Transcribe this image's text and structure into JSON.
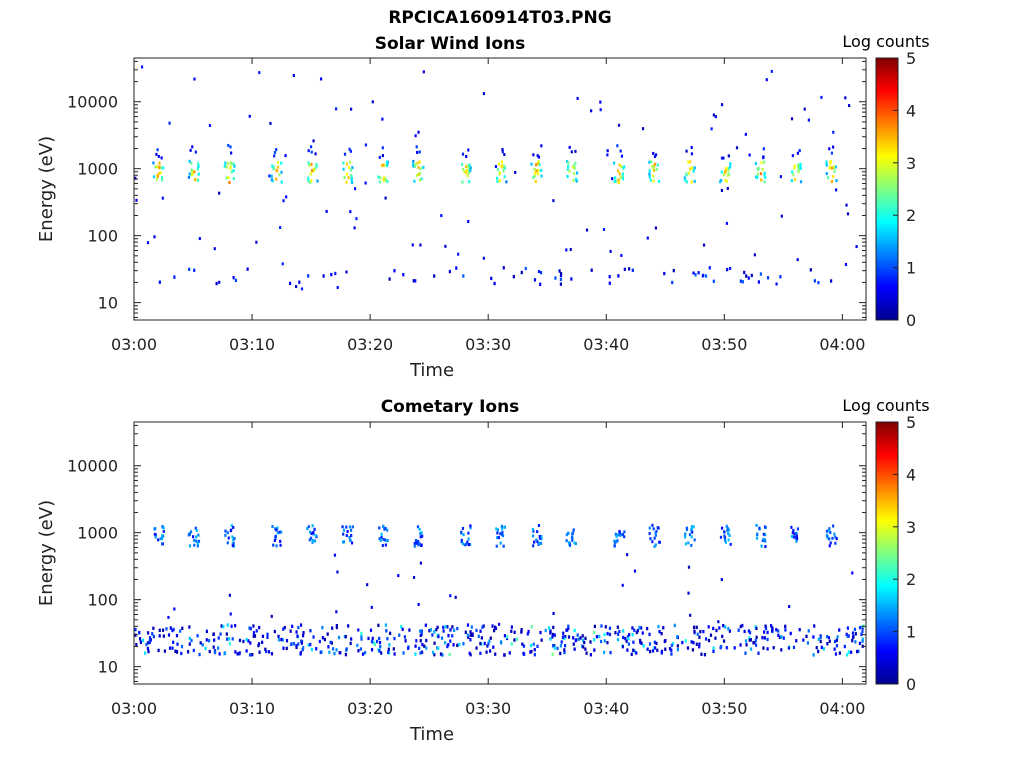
{
  "figure_title": "RPCICA160914T03.PNG",
  "chart_data": [
    {
      "type": "heatmap",
      "title": "Solar Wind Ions",
      "xlabel": "Time",
      "ylabel": "Energy (eV)",
      "x_ticks": [
        "03:00",
        "03:10",
        "03:20",
        "03:30",
        "03:40",
        "03:50",
        "04:00"
      ],
      "xlim": [
        "03:00",
        "04:02"
      ],
      "y_scale": "log",
      "y_ticks": [
        "10",
        "100",
        "1000",
        "10000"
      ],
      "ylim": [
        5.5,
        45000
      ],
      "colorbar": {
        "label": "Log counts",
        "range": [
          0,
          5
        ],
        "ticks": [
          "0",
          "1",
          "2",
          "3",
          "4",
          "5"
        ],
        "colormap": "jet"
      },
      "features": {
        "solar_wind_beam_energy_eV": 900,
        "solar_wind_beam_peak_log_counts": 3,
        "solar_wind_beam_times": [
          "03:02",
          "03:05",
          "03:08",
          "03:12",
          "03:15",
          "03:18",
          "03:21",
          "03:24",
          "03:28",
          "03:31",
          "03:34",
          "03:37",
          "03:41",
          "03:44",
          "03:47",
          "03:50",
          "03:53",
          "03:56",
          "03:59"
        ],
        "low_energy_band_eV": 25,
        "low_energy_band_log_counts": 1
      }
    },
    {
      "type": "heatmap",
      "title": "Cometary Ions",
      "xlabel": "Time",
      "ylabel": "Energy (eV)",
      "x_ticks": [
        "03:00",
        "03:10",
        "03:20",
        "03:30",
        "03:40",
        "03:50",
        "04:00"
      ],
      "xlim": [
        "03:00",
        "04:02"
      ],
      "y_scale": "log",
      "y_ticks": [
        "10",
        "100",
        "1000",
        "10000"
      ],
      "ylim": [
        5.5,
        45000
      ],
      "colorbar": {
        "label": "Log counts",
        "range": [
          0,
          5
        ],
        "ticks": [
          "0",
          "1",
          "2",
          "3",
          "4",
          "5"
        ],
        "colormap": "jet"
      },
      "features": {
        "beam_energy_eV": 900,
        "beam_log_counts": 1.3,
        "beam_times": [
          "03:02",
          "03:05",
          "03:08",
          "03:12",
          "03:15",
          "03:18",
          "03:21",
          "03:24",
          "03:28",
          "03:31",
          "03:34",
          "03:37",
          "03:41",
          "03:44",
          "03:47",
          "03:50",
          "03:53",
          "03:56",
          "03:59"
        ],
        "cometary_band_eV": 25,
        "cometary_band_peak_log_counts": 2
      }
    }
  ]
}
